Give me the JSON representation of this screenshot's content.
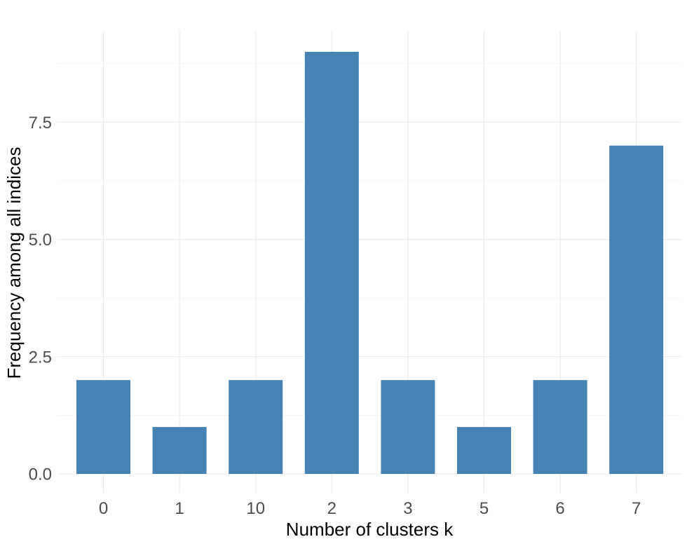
{
  "chart_data": {
    "type": "bar",
    "title": "",
    "xlabel": "Number of clusters k",
    "ylabel": "Frequency among all indices",
    "categories": [
      "0",
      "1",
      "10",
      "2",
      "3",
      "5",
      "6",
      "7"
    ],
    "values": [
      2,
      1,
      2,
      9,
      2,
      1,
      2,
      7
    ],
    "ylim": [
      0,
      9
    ],
    "yticks": [
      "0.0",
      "2.5",
      "5.0",
      "7.5"
    ],
    "bar_color": "#4682b4",
    "grid": true,
    "legend": "none"
  }
}
